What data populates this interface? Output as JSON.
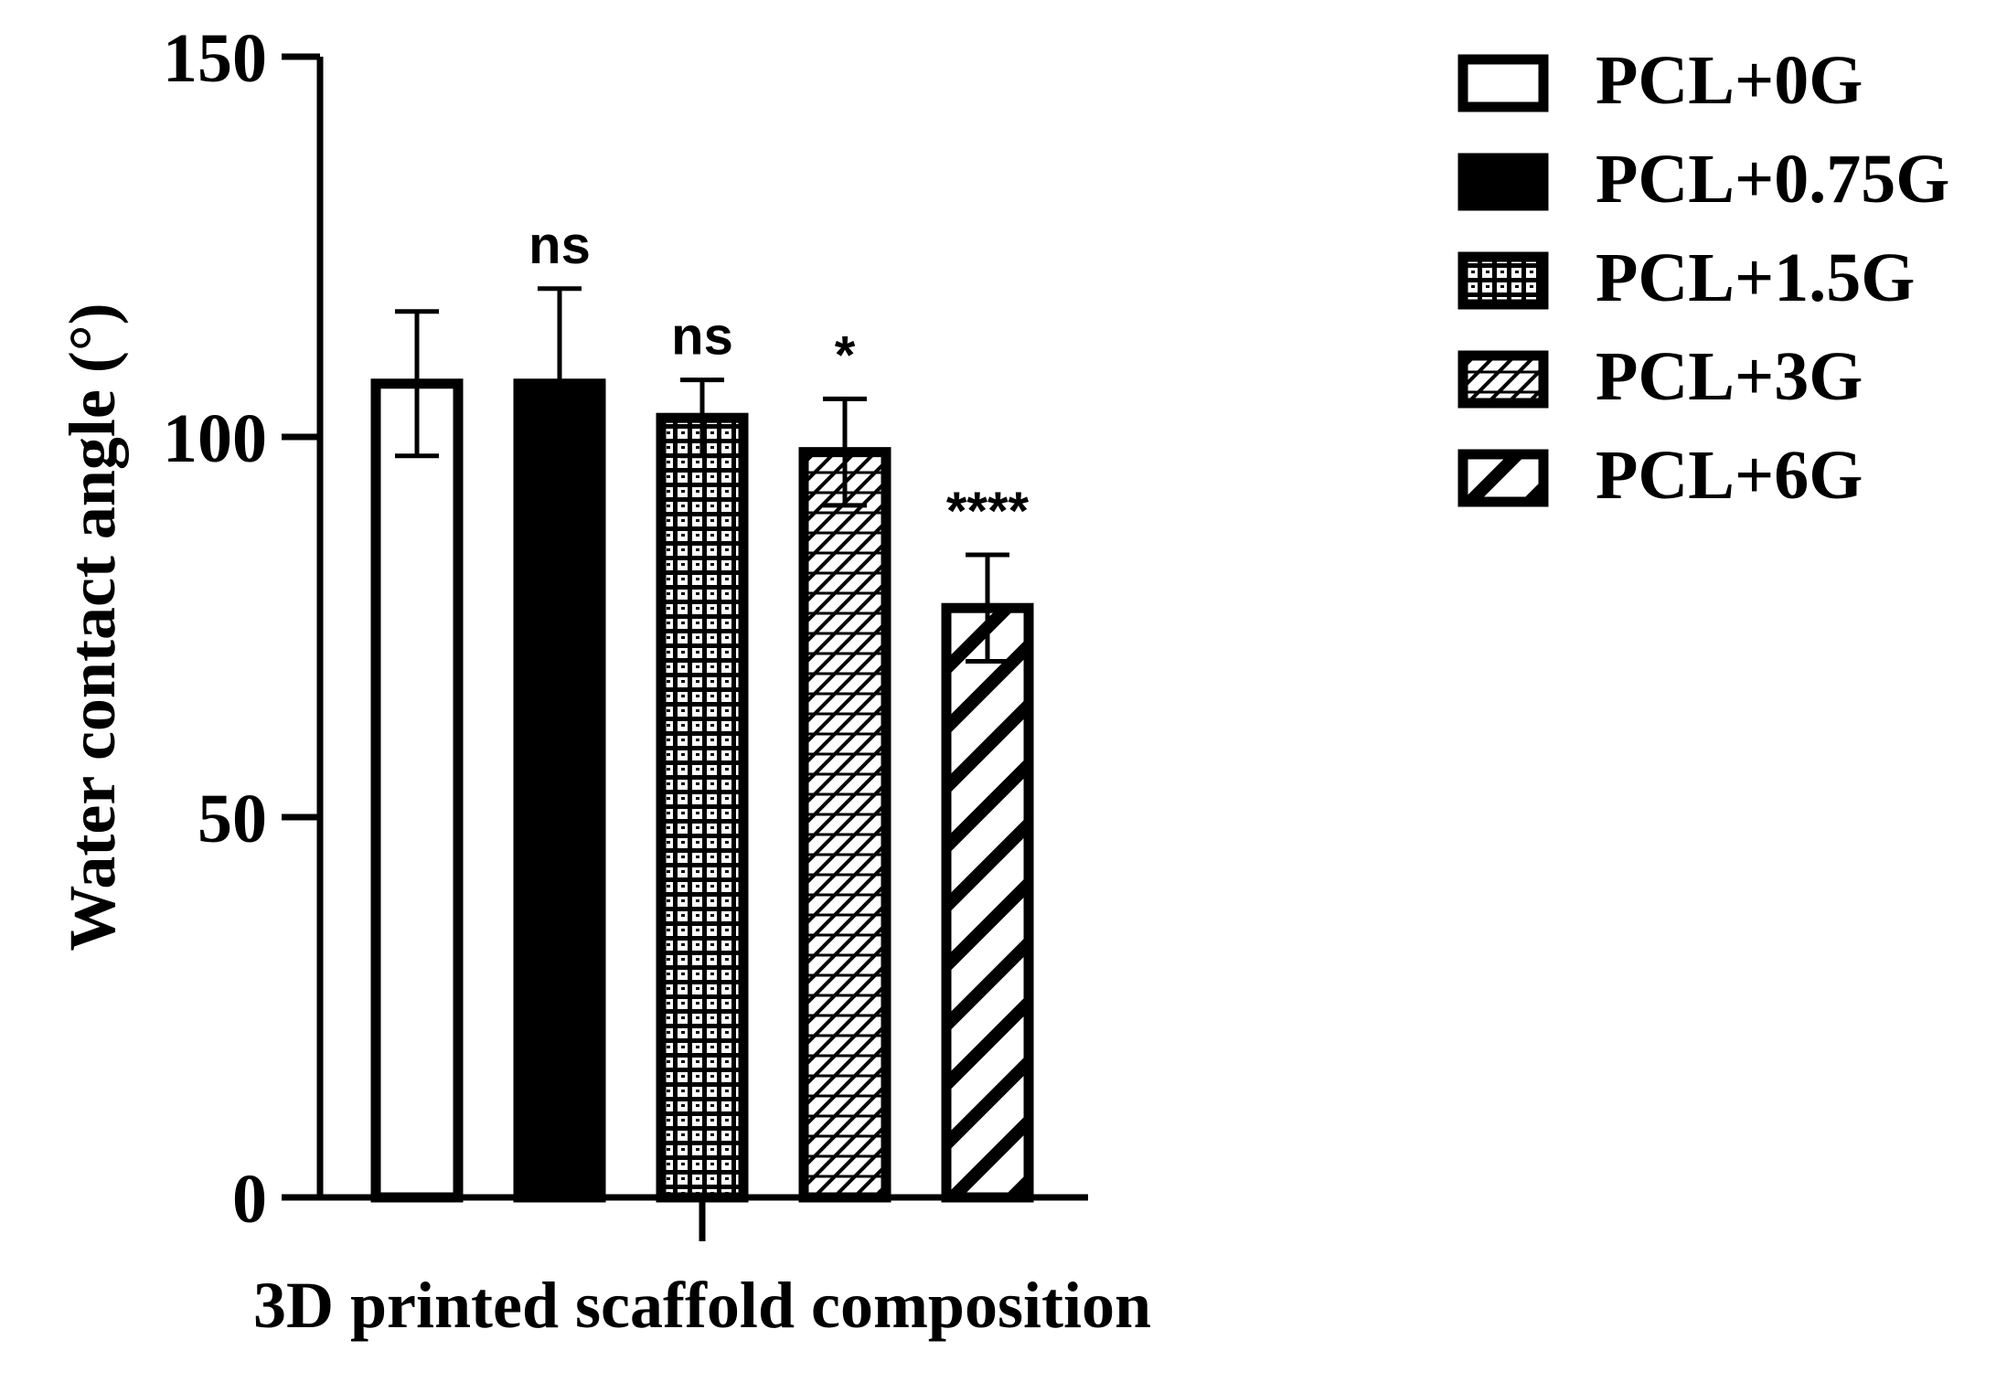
{
  "chart_data": {
    "type": "bar",
    "title": "",
    "xlabel": "3D printed scaffold composition",
    "ylabel": "Water contact angle (°)",
    "ylim": [
      0,
      150
    ],
    "yticks": [
      0,
      50,
      100,
      150
    ],
    "grid": false,
    "legend_position": "right",
    "series": [
      {
        "name": "PCL+0G",
        "value": 107,
        "error": 9.5,
        "significance": "",
        "pattern": "open",
        "color": "#000000"
      },
      {
        "name": "PCL+0.75G",
        "value": 107,
        "error": 12.5,
        "significance": "ns",
        "pattern": "solid",
        "color": "#000000"
      },
      {
        "name": "PCL+1.5G",
        "value": 102.5,
        "error": 5,
        "significance": "ns",
        "pattern": "grid",
        "color": "#000000"
      },
      {
        "name": "PCL+3G",
        "value": 98,
        "error": 7,
        "significance": "*",
        "pattern": "crosshatch",
        "color": "#000000"
      },
      {
        "name": "PCL+6G",
        "value": 77.5,
        "error": 7,
        "significance": "****",
        "pattern": "diagonal",
        "color": "#000000"
      }
    ]
  }
}
